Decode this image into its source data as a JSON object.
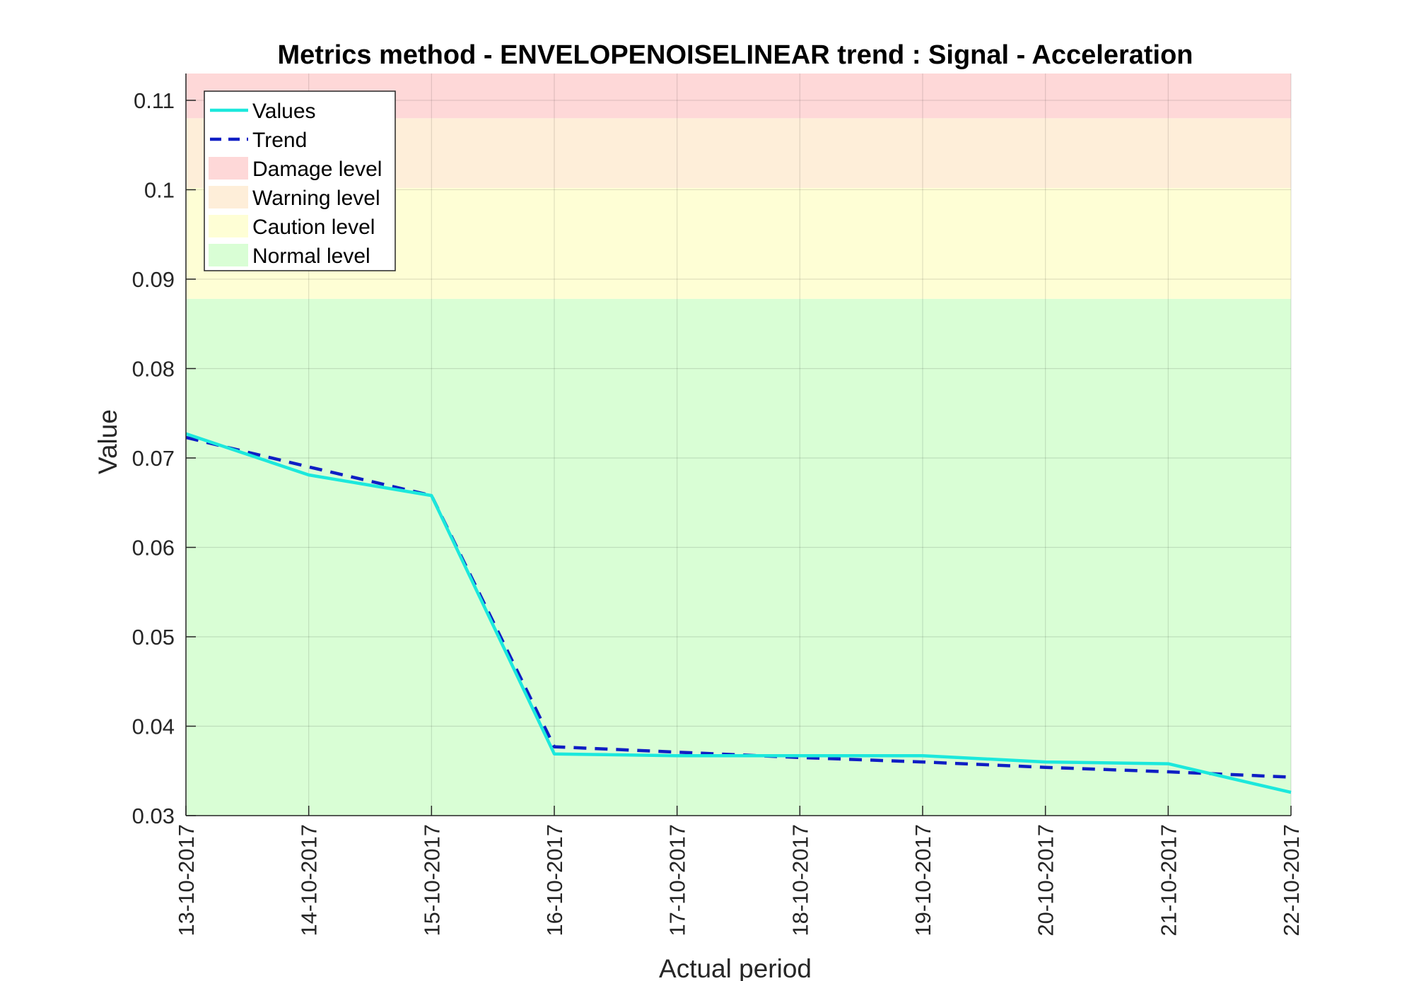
{
  "chart_data": {
    "type": "line",
    "title": "Metrics method - ENVELOPENOISELINEAR trend : Signal - Acceleration",
    "xlabel": "Actual period",
    "ylabel": "Value",
    "categories": [
      "13-10-2017",
      "14-10-2017",
      "15-10-2017",
      "16-10-2017",
      "17-10-2017",
      "18-10-2017",
      "19-10-2017",
      "20-10-2017",
      "21-10-2017",
      "22-10-2017"
    ],
    "ylim": [
      0.03,
      0.113
    ],
    "yticks": [
      0.03,
      0.04,
      0.05,
      0.06,
      0.07,
      0.08,
      0.09,
      0.1,
      0.11
    ],
    "ytick_labels": [
      "0.03",
      "0.04",
      "0.05",
      "0.06",
      "0.07",
      "0.08",
      "0.09",
      "0.1",
      "0.11"
    ],
    "grid": true,
    "legend_position": "top-left",
    "bands": [
      {
        "name": "Normal level",
        "from": 0.03,
        "to": 0.0878,
        "color": "#d9fed5"
      },
      {
        "name": "Caution level",
        "from": 0.0878,
        "to": 0.1002,
        "color": "#fefed5"
      },
      {
        "name": "Warning level",
        "from": 0.1002,
        "to": 0.108,
        "color": "#feeed9"
      },
      {
        "name": "Damage level",
        "from": 0.108,
        "to": 0.113,
        "color": "#fed8d8"
      }
    ],
    "series": [
      {
        "name": "Values",
        "style": "solid",
        "color": "#1ce8dc",
        "values": [
          0.0727,
          0.0681,
          0.0658,
          0.0369,
          0.0367,
          0.0367,
          0.0367,
          0.036,
          0.0358,
          0.0326
        ]
      },
      {
        "name": "Trend",
        "style": "dashed",
        "color": "#0f1ec4",
        "values": [
          0.0723,
          0.069,
          0.0658,
          0.0377,
          0.0371,
          0.0365,
          0.036,
          0.0354,
          0.0349,
          0.0343
        ]
      }
    ],
    "legend": [
      {
        "label": "Values",
        "kind": "line",
        "style": "solid",
        "color": "#1ce8dc"
      },
      {
        "label": "Trend",
        "kind": "line",
        "style": "dashed",
        "color": "#0f1ec4"
      },
      {
        "label": "Damage level",
        "kind": "patch",
        "color": "#fed8d8"
      },
      {
        "label": "Warning level",
        "kind": "patch",
        "color": "#feeed9"
      },
      {
        "label": "Caution level",
        "kind": "patch",
        "color": "#fefed5"
      },
      {
        "label": "Normal level",
        "kind": "patch",
        "color": "#d9fed5"
      }
    ]
  }
}
